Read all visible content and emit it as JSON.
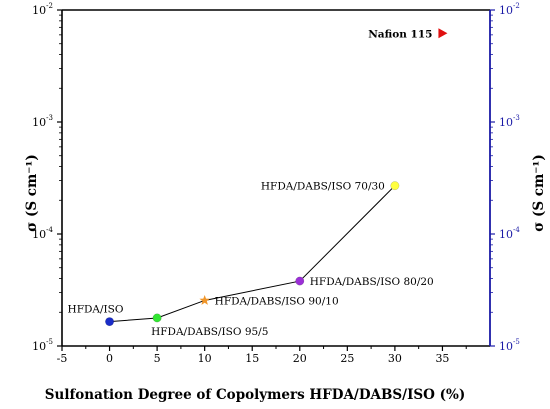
{
  "chart_data": {
    "type": "scatter",
    "xlabel": "Sulfonation Degree of Copolymers HFDA/DABS/ISO (%)",
    "ylabel_left": "σ (S cm⁻¹)",
    "ylabel_right": "σ (S cm⁻¹)",
    "y_scale": "log",
    "xlim": [
      -5,
      40
    ],
    "ylim": [
      1e-05,
      0.01
    ],
    "x_ticks": [
      -5,
      0,
      5,
      10,
      15,
      20,
      25,
      30,
      35
    ],
    "x_tick_labels": [
      "-5",
      "0",
      "5",
      "10",
      "15",
      "20",
      "25",
      "30",
      "35"
    ],
    "y_ticks": [
      1e-05,
      0.0001,
      0.001,
      0.01
    ],
    "y_tick_labels": [
      {
        "base": "10",
        "exp": "-5"
      },
      {
        "base": "10",
        "exp": "-4"
      },
      {
        "base": "10",
        "exp": "-3"
      },
      {
        "base": "10",
        "exp": "-2"
      }
    ],
    "grid": false,
    "colors": {
      "left_axis": "#000000",
      "right_axis": "#1a1aa6",
      "line": "#000000"
    },
    "line_series": {
      "x": [
        0,
        5,
        10,
        20,
        30
      ],
      "y": [
        1.65e-05,
        1.78e-05,
        2.55e-05,
        3.8e-05,
        0.00027
      ]
    },
    "points": [
      {
        "label": "HFDA/ISO",
        "x": 0,
        "y": 1.65e-05,
        "marker": "circle",
        "color": "#1a2cc8",
        "label_pos": "above-left"
      },
      {
        "label": "HFDA/DABS/ISO 95/5",
        "x": 5,
        "y": 1.78e-05,
        "marker": "circle",
        "color": "#33e633",
        "label_pos": "below-right"
      },
      {
        "label": "HFDA/DABS/ISO 90/10",
        "x": 10,
        "y": 2.55e-05,
        "marker": "star",
        "color": "#f0962a",
        "label_pos": "right"
      },
      {
        "label": "HFDA/DABS/ISO 80/20",
        "x": 20,
        "y": 3.8e-05,
        "marker": "circle",
        "color": "#9b2fd6",
        "label_pos": "right"
      },
      {
        "label": "HFDA/DABS/ISO 70/30",
        "x": 30,
        "y": 0.00027,
        "marker": "circle",
        "color": "#ffff40",
        "label_pos": "left"
      },
      {
        "label": "Nafion 115",
        "x": 35,
        "y": 0.0062,
        "marker": "triangle-right",
        "color": "#e01010",
        "label_pos": "left"
      }
    ]
  }
}
